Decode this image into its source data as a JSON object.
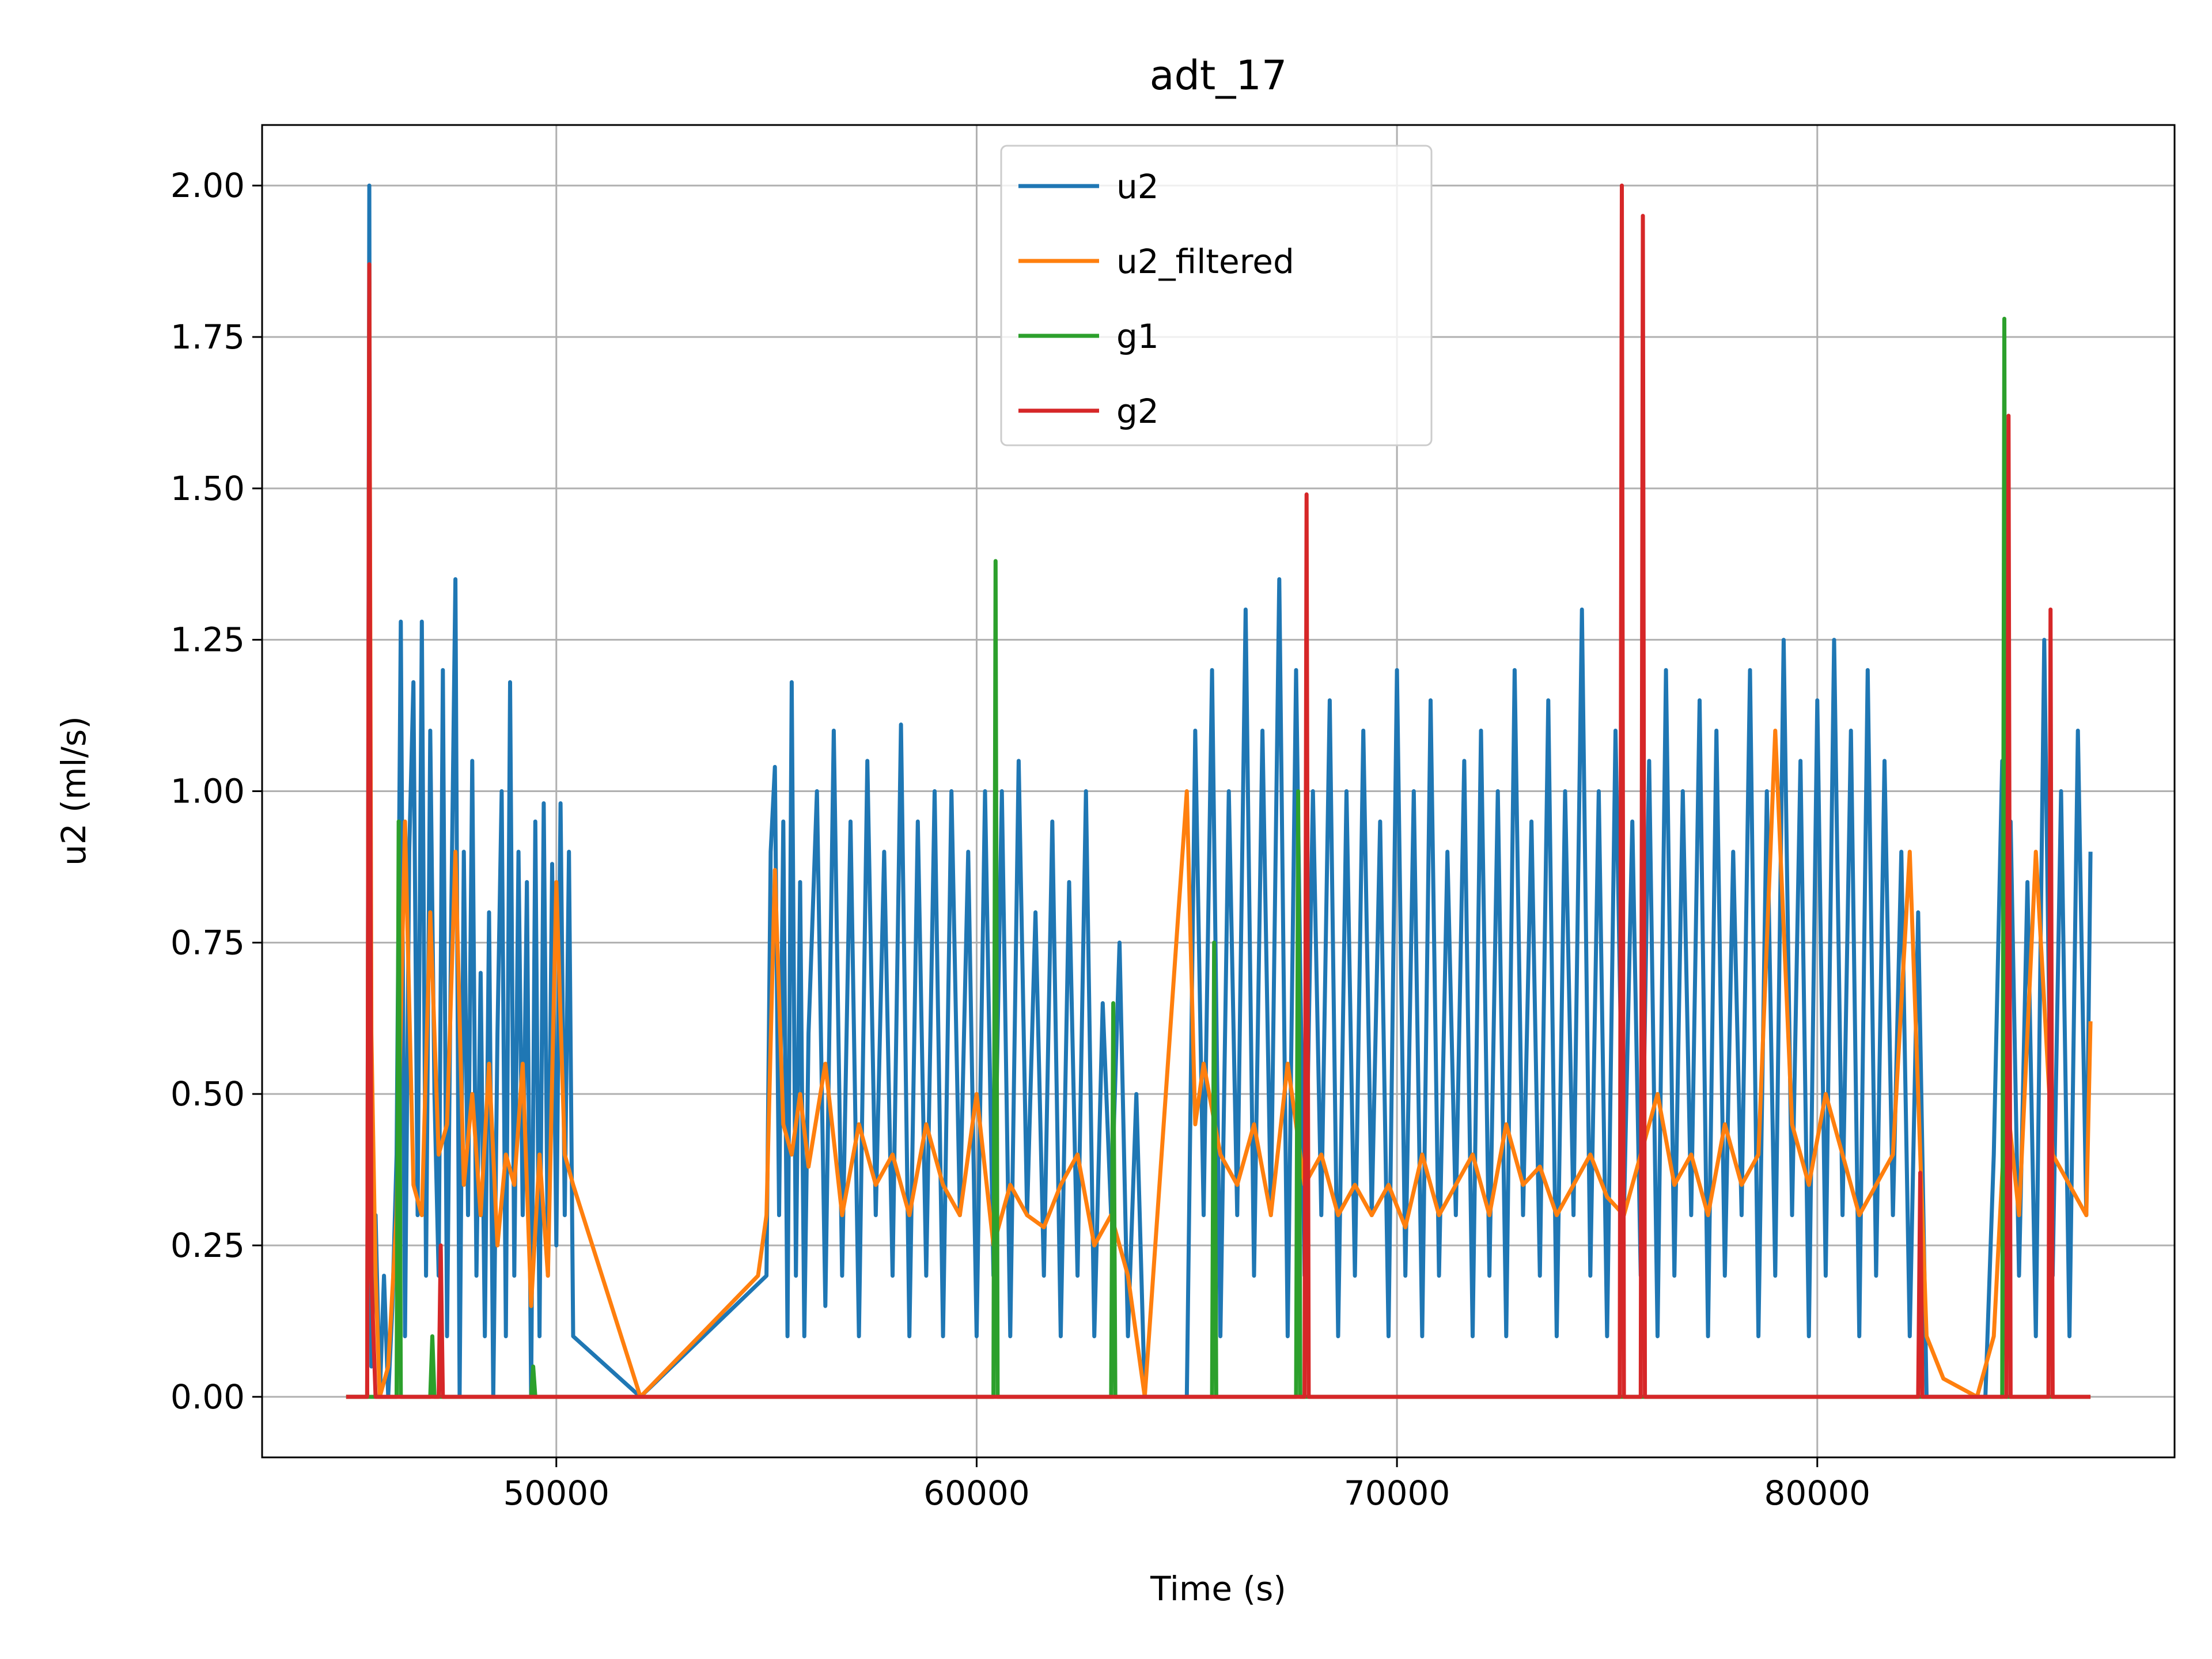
{
  "chart_data": {
    "type": "line",
    "title": "adt_17",
    "xlabel": "Time (s)",
    "ylabel": "u2 (ml/s)",
    "xlim": [
      43000,
      88500
    ],
    "ylim": [
      -0.1,
      2.1
    ],
    "xticks": [
      50000,
      60000,
      70000,
      80000
    ],
    "xtick_labels": [
      "50000",
      "60000",
      "70000",
      "80000"
    ],
    "yticks": [
      0.0,
      0.25,
      0.5,
      0.75,
      1.0,
      1.25,
      1.5,
      1.75,
      2.0
    ],
    "ytick_labels": [
      "0.00",
      "0.25",
      "0.50",
      "0.75",
      "1.00",
      "1.25",
      "1.50",
      "1.75",
      "2.00"
    ],
    "grid": true,
    "legend_position": "upper center",
    "series": [
      {
        "name": "u2",
        "color": "#1f77b4",
        "x": [
          45000,
          45500,
          45550,
          45600,
          45700,
          45800,
          45900,
          46000,
          46100,
          46200,
          46300,
          46400,
          46500,
          46600,
          46700,
          46800,
          46900,
          47000,
          47100,
          47200,
          47300,
          47400,
          47500,
          47600,
          47700,
          47800,
          47900,
          48000,
          48100,
          48200,
          48300,
          48400,
          48500,
          48600,
          48700,
          48800,
          48900,
          49000,
          49100,
          49200,
          49300,
          49400,
          49500,
          49600,
          49700,
          49800,
          49900,
          50000,
          50100,
          50200,
          50300,
          50400,
          52000,
          55000,
          55100,
          55200,
          55300,
          55400,
          55500,
          55600,
          55700,
          55800,
          55900,
          56000,
          56200,
          56400,
          56600,
          56800,
          57000,
          57200,
          57400,
          57600,
          57800,
          58000,
          58200,
          58400,
          58600,
          58800,
          59000,
          59200,
          59400,
          59600,
          59800,
          60000,
          60200,
          60400,
          60600,
          60800,
          61000,
          61200,
          61400,
          61600,
          61800,
          62000,
          62200,
          62400,
          62600,
          62800,
          63000,
          63200,
          63400,
          63600,
          63800,
          64000,
          65000,
          65200,
          65400,
          65600,
          65800,
          66000,
          66200,
          66400,
          66600,
          66800,
          67000,
          67200,
          67400,
          67600,
          67800,
          68000,
          68200,
          68400,
          68600,
          68800,
          69000,
          69200,
          69400,
          69600,
          69800,
          70000,
          70200,
          70400,
          70600,
          70800,
          71000,
          71200,
          71400,
          71600,
          71800,
          72000,
          72200,
          72400,
          72600,
          72800,
          73000,
          73200,
          73400,
          73600,
          73800,
          74000,
          74200,
          74400,
          74600,
          74800,
          75000,
          75200,
          75400,
          75600,
          75800,
          76000,
          76200,
          76400,
          76600,
          76800,
          77000,
          77200,
          77400,
          77600,
          77800,
          78000,
          78200,
          78400,
          78600,
          78800,
          79000,
          79200,
          79400,
          79600,
          79800,
          80000,
          80200,
          80400,
          80600,
          80800,
          81000,
          81200,
          81400,
          81600,
          81800,
          82000,
          82200,
          82400,
          82600,
          84000,
          84200,
          84400,
          84500,
          84600,
          84800,
          85000,
          85200,
          85400,
          85600,
          85800,
          86000,
          86200,
          86400,
          86500
        ],
        "y": [
          0,
          0,
          2.0,
          0.05,
          0.3,
          0,
          0.2,
          0,
          0.15,
          0.4,
          1.28,
          0.1,
          0.9,
          1.18,
          0.3,
          1.28,
          0.2,
          1.1,
          0.5,
          0.2,
          1.2,
          0.1,
          0.8,
          1.35,
          0,
          0.9,
          0.3,
          1.05,
          0.2,
          0.7,
          0.1,
          0.8,
          0,
          0.6,
          1.0,
          0.1,
          1.18,
          0.2,
          0.9,
          0.3,
          0.85,
          0,
          0.95,
          0.1,
          0.98,
          0.2,
          0.88,
          0.25,
          0.98,
          0.3,
          0.9,
          0.1,
          0,
          0.2,
          0.9,
          1.04,
          0.3,
          0.95,
          0.1,
          1.18,
          0.2,
          0.85,
          0.1,
          0.6,
          1.0,
          0.15,
          1.1,
          0.2,
          0.95,
          0.1,
          1.05,
          0.3,
          0.9,
          0.2,
          1.11,
          0.1,
          0.95,
          0.2,
          1.0,
          0.1,
          1.0,
          0.3,
          0.9,
          0.1,
          1.0,
          0.2,
          1.0,
          0.1,
          1.05,
          0.3,
          0.8,
          0.2,
          0.95,
          0.1,
          0.85,
          0.2,
          1.0,
          0.1,
          0.65,
          0.3,
          0.75,
          0.1,
          0.5,
          0,
          0,
          1.1,
          0.3,
          1.2,
          0.1,
          1.0,
          0.3,
          1.3,
          0.2,
          1.1,
          0.3,
          1.35,
          0.1,
          1.2,
          0.2,
          1.0,
          0.3,
          1.15,
          0.1,
          1.0,
          0.2,
          1.1,
          0.3,
          0.95,
          0.1,
          1.2,
          0.2,
          1.0,
          0.1,
          1.15,
          0.2,
          0.9,
          0.3,
          1.05,
          0.1,
          1.1,
          0.2,
          1.0,
          0.1,
          1.2,
          0.3,
          0.95,
          0.2,
          1.15,
          0.1,
          1.0,
          0.3,
          1.3,
          0.2,
          1.0,
          0.1,
          1.1,
          0.3,
          0.95,
          0.2,
          1.05,
          0.1,
          1.2,
          0.2,
          1.0,
          0.3,
          1.15,
          0.1,
          1.1,
          0.2,
          0.9,
          0.3,
          1.2,
          0.1,
          1.0,
          0.2,
          1.25,
          0.3,
          1.05,
          0.1,
          1.15,
          0.2,
          1.25,
          0.3,
          1.1,
          0.1,
          1.2,
          0.2,
          1.05,
          0.3,
          0.9,
          0.1,
          0.8,
          0,
          0,
          0.4,
          1.05,
          0.3,
          0.95,
          0.2,
          0.85,
          0.1,
          1.25,
          0.2,
          1.0,
          0.1,
          1.1,
          0.3,
          0.9
        ]
      },
      {
        "name": "u2_filtered",
        "color": "#ff7f0e",
        "x": [
          45000,
          45500,
          45550,
          45600,
          45700,
          45800,
          46000,
          46200,
          46400,
          46600,
          46800,
          47000,
          47200,
          47400,
          47600,
          47800,
          48000,
          48200,
          48400,
          48600,
          48800,
          49000,
          49200,
          49400,
          49600,
          49800,
          50000,
          50200,
          50400,
          52000,
          54800,
          55000,
          55200,
          55400,
          55600,
          55800,
          56000,
          56400,
          56800,
          57200,
          57600,
          58000,
          58400,
          58800,
          59200,
          59600,
          60000,
          60400,
          60800,
          61200,
          61600,
          62000,
          62400,
          62800,
          63200,
          63600,
          64000,
          65000,
          65200,
          65400,
          65800,
          66200,
          66600,
          67000,
          67400,
          67800,
          68200,
          68600,
          69000,
          69400,
          69800,
          70200,
          70600,
          71000,
          71400,
          71800,
          72200,
          72600,
          73000,
          73400,
          73800,
          74200,
          74600,
          75000,
          75400,
          75800,
          76200,
          76600,
          77000,
          77400,
          77800,
          78200,
          78600,
          79000,
          79400,
          79800,
          80200,
          80600,
          81000,
          81400,
          81800,
          82200,
          82600,
          83000,
          83800,
          84200,
          84500,
          84800,
          85200,
          85600,
          86000,
          86400,
          86500
        ],
        "y": [
          0,
          0,
          1.87,
          0.6,
          0.2,
          0,
          0.05,
          0.3,
          0.95,
          0.35,
          0.3,
          0.8,
          0.4,
          0.45,
          0.9,
          0.35,
          0.5,
          0.3,
          0.55,
          0.25,
          0.4,
          0.35,
          0.55,
          0.15,
          0.4,
          0.2,
          0.85,
          0.4,
          0.35,
          0,
          0.2,
          0.3,
          0.87,
          0.45,
          0.4,
          0.5,
          0.38,
          0.55,
          0.3,
          0.45,
          0.35,
          0.4,
          0.3,
          0.45,
          0.35,
          0.3,
          0.5,
          0.25,
          0.35,
          0.3,
          0.28,
          0.35,
          0.4,
          0.25,
          0.3,
          0.2,
          0,
          1.0,
          0.45,
          0.55,
          0.4,
          0.35,
          0.45,
          0.3,
          0.55,
          0.35,
          0.4,
          0.3,
          0.35,
          0.3,
          0.35,
          0.28,
          0.4,
          0.3,
          0.35,
          0.4,
          0.3,
          0.45,
          0.35,
          0.38,
          0.3,
          0.35,
          0.4,
          0.33,
          0.3,
          0.4,
          0.5,
          0.35,
          0.4,
          0.3,
          0.45,
          0.35,
          0.4,
          1.1,
          0.45,
          0.35,
          0.5,
          0.4,
          0.3,
          0.35,
          0.4,
          0.9,
          0.1,
          0.03,
          0,
          0.1,
          0.5,
          0.3,
          0.9,
          0.4,
          0.35,
          0.3,
          0.62
        ]
      },
      {
        "name": "g1",
        "color": "#2ca02c",
        "x": [
          45000,
          46200,
          46250,
          46300,
          47000,
          47050,
          47100,
          49400,
          49450,
          49500,
          60400,
          60450,
          60500,
          63200,
          63250,
          63300,
          65600,
          65650,
          65700,
          67600,
          67650,
          67700,
          84400,
          84450,
          84500,
          86500
        ],
        "y": [
          0,
          0,
          0.95,
          0,
          0,
          0.1,
          0,
          0,
          0.05,
          0,
          0,
          1.38,
          0,
          0,
          0.65,
          0,
          0,
          0.75,
          0,
          0,
          1.0,
          0,
          0,
          1.78,
          0,
          0
        ]
      },
      {
        "name": "g2",
        "color": "#d62728",
        "x": [
          45000,
          45500,
          45550,
          45600,
          45700,
          47200,
          47250,
          47300,
          67800,
          67850,
          67900,
          75300,
          75350,
          75400,
          75800,
          75850,
          75900,
          82400,
          82450,
          82500,
          84500,
          84550,
          84600,
          85500,
          85550,
          85600,
          86500
        ],
        "y": [
          0,
          0,
          1.87,
          0.2,
          0,
          0,
          0.25,
          0,
          0,
          1.49,
          0,
          0,
          2.0,
          0,
          0,
          1.95,
          0,
          0,
          0.37,
          0,
          0,
          1.62,
          0,
          0,
          1.3,
          0,
          0
        ]
      }
    ]
  }
}
